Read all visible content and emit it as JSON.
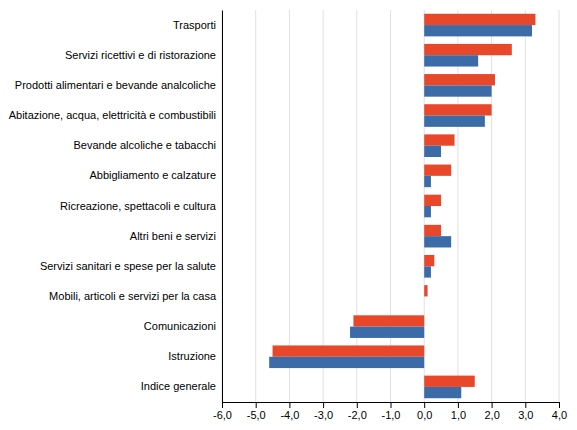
{
  "chart_data": {
    "type": "bar",
    "orientation": "horizontal",
    "categories": [
      "Trasporti",
      "Servizi ricettivi e di ristorazione",
      "Prodotti alimentari e bevande analcoliche",
      "Abitazione, acqua, elettricità e combustibili",
      "Bevande alcoliche e tabacchi",
      "Abbigliamento e calzature",
      "Ricreazione, spettacoli e cultura",
      "Altri beni e servizi",
      "Servizi sanitari e spese per la salute",
      "Mobili, articoli e servizi per la casa",
      "Comunicazioni",
      "Istruzione",
      "Indice generale"
    ],
    "series": [
      {
        "color": "#e8472a",
        "values": [
          3.3,
          2.6,
          2.1,
          2.0,
          0.9,
          0.8,
          0.5,
          0.5,
          0.3,
          0.1,
          -2.1,
          -4.5,
          1.5
        ]
      },
      {
        "color": "#3b6ca8",
        "values": [
          3.2,
          1.6,
          2.0,
          1.8,
          0.5,
          0.2,
          0.2,
          0.8,
          0.2,
          0.0,
          -2.2,
          -4.6,
          1.1
        ]
      }
    ],
    "xlim": [
      -6.0,
      4.0
    ],
    "xticks": [
      {
        "value": -6.0,
        "label": "-6,0"
      },
      {
        "value": -5.0,
        "label": "-5,0"
      },
      {
        "value": -4.0,
        "label": "-4,0"
      },
      {
        "value": -3.0,
        "label": "-3,0"
      },
      {
        "value": -2.0,
        "label": "-2,0"
      },
      {
        "value": -1.0,
        "label": "-1,0"
      },
      {
        "value": 0.0,
        "label": "0,0"
      },
      {
        "value": 1.0,
        "label": "1,0"
      },
      {
        "value": 2.0,
        "label": "2,0"
      },
      {
        "value": 3.0,
        "label": "3,0"
      },
      {
        "value": 4.0,
        "label": "4,0"
      }
    ],
    "grid": true
  }
}
